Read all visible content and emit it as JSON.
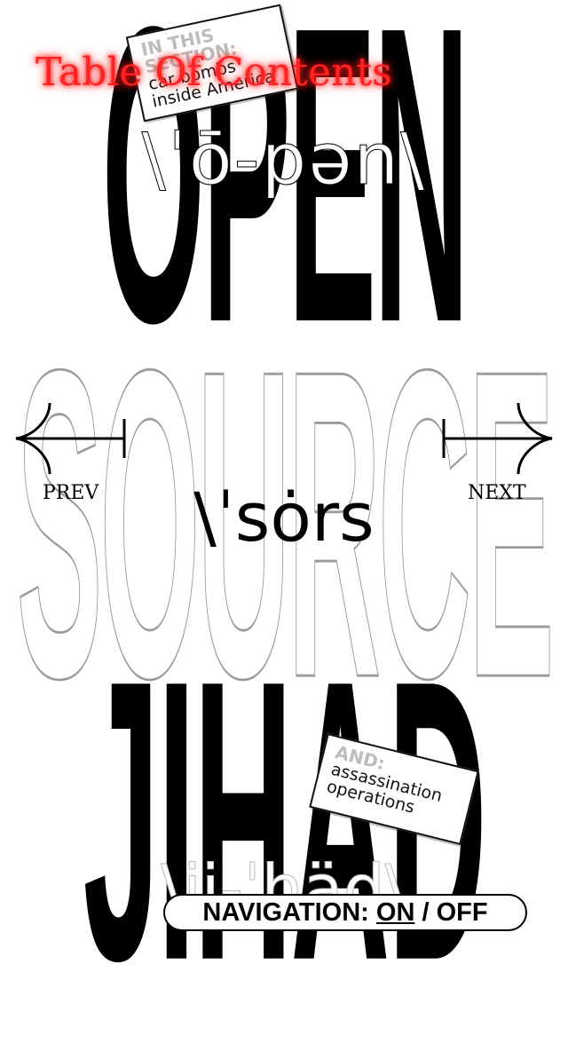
{
  "menu": {
    "table_of_contents": "Table Of Contents"
  },
  "cover": {
    "word_open": "OPEN",
    "pron_open": "\\ˈō-pən\\",
    "word_source": "SOURCE",
    "pron_source": "\\ˈsȯrs",
    "word_jihad": "JIHAD",
    "pron_jihad": "\\ji-ˈhäd\\"
  },
  "notes": {
    "top": {
      "heading": "IN THIS SECTION:",
      "body": "car bombs\ninside America"
    },
    "bottom": {
      "heading": "AND:",
      "body": "assassination\noperations"
    }
  },
  "navigation": {
    "prev_label": "PREV",
    "next_label": "NEXT",
    "toggle_prefix": "NAVIGATION:",
    "on_label": "ON",
    "separator": "/",
    "off_label": "OFF"
  },
  "icons": {
    "prev": "arrow-left-icon",
    "next": "arrow-right-icon"
  },
  "colors": {
    "toc_glow": "#ff2222",
    "text": "#000000",
    "outline": "#9b9b9b",
    "background": "#ffffff"
  }
}
